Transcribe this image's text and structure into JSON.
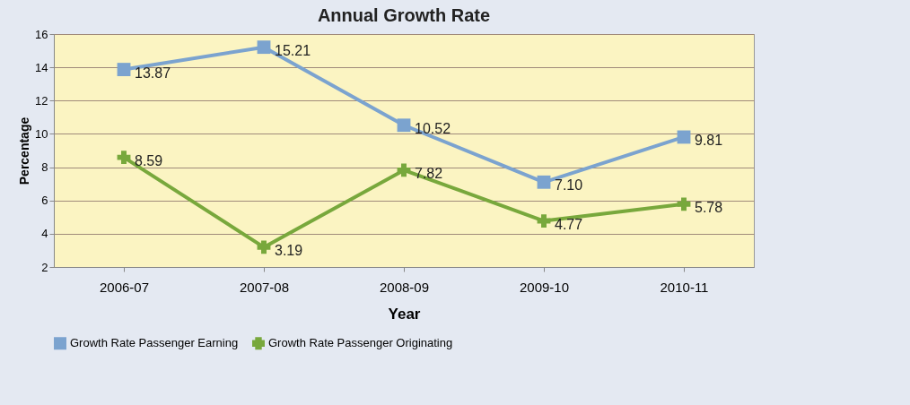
{
  "chart_data": {
    "type": "line",
    "title": "Annual Growth Rate",
    "xlabel": "Year",
    "ylabel": "Percentage",
    "categories": [
      "2006-07",
      "2007-08",
      "2008-09",
      "2009-10",
      "2010-11"
    ],
    "series": [
      {
        "name": "Growth Rate Passenger Earning",
        "color": "#7ba3cf",
        "marker": "square",
        "values": [
          13.87,
          15.21,
          10.52,
          7.1,
          9.81
        ],
        "value_labels": [
          "13.87",
          "15.21",
          "10.52",
          "7.10",
          "9.81"
        ]
      },
      {
        "name": "Growth Rate Passenger Originating",
        "color": "#78a83c",
        "marker": "cross",
        "values": [
          8.59,
          3.19,
          7.82,
          4.77,
          5.78
        ],
        "value_labels": [
          "8.59",
          "3.19",
          "7.82",
          "4.77",
          "5.78"
        ]
      }
    ],
    "ylim": [
      2,
      16
    ],
    "yticks": [
      2,
      4,
      6,
      8,
      10,
      12,
      14,
      16
    ],
    "grid": "y",
    "legend": "bottom"
  }
}
